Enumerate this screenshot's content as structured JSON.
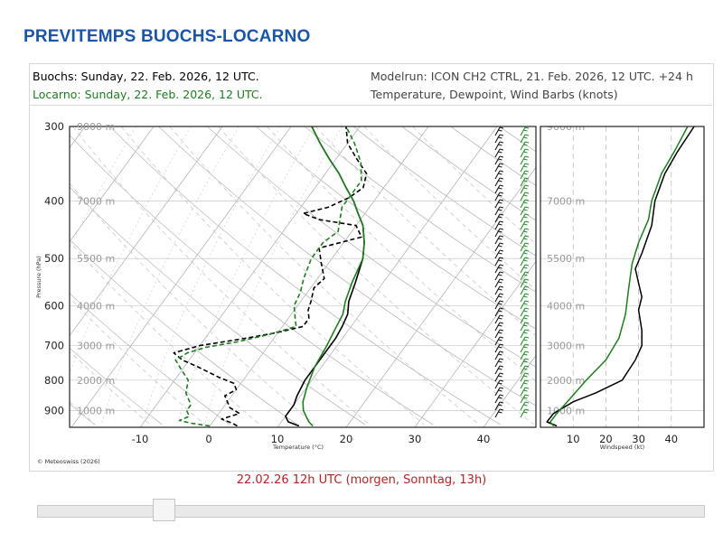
{
  "page": {
    "title": "PREVITEMPS BUOCHS-LOCARNO"
  },
  "header": {
    "station1": "Buochs: Sunday, 22. Feb. 2026, 12 UTC.",
    "station2": "Locarno: Sunday, 22. Feb. 2026, 12 UTC.",
    "modelrun": "Modelrun: ICON CH2 CTRL, 21. Feb. 2026, 12 UTC. +24 h",
    "variables": "Temperature, Dewpoint, Wind Barbs (knots)"
  },
  "copyright": "© Meteoswiss (2026)",
  "timestamp": "22.02.26 12h UTC (morgen, Sonntag, 13h)",
  "slider": {
    "position": 0.19
  },
  "colors": {
    "title": "#1a56a8",
    "buochs": "#000000",
    "locarno": "#1e7d1e",
    "timestamp": "#b32424"
  },
  "chart_data": [
    {
      "type": "line",
      "title": "",
      "xlabel": "Temperature (°C)",
      "ylabel": "Pressure (hPa)",
      "xlim": [
        -20,
        45
      ],
      "ylim": [
        960,
        300
      ],
      "log_scale_y": true,
      "x_ticks": [
        -10,
        0,
        10,
        20,
        30,
        40
      ],
      "y_ticks": [
        300,
        400,
        500,
        600,
        700,
        800,
        900
      ],
      "height_labels": [
        "9000 m",
        "7000 m",
        "5500 m",
        "4000 m",
        "3000 m",
        "2000 m",
        "1000 m"
      ],
      "series": [
        {
          "color": "#000000",
          "style": "solid",
          "points": [
            [
              13,
              955
            ],
            [
              11,
              940
            ],
            [
              10,
              920
            ],
            [
              10,
              880
            ],
            [
              9.5,
              850
            ],
            [
              9,
              800
            ],
            [
              9,
              750
            ],
            [
              9,
              700
            ],
            [
              9,
              680
            ],
            [
              8.7,
              650
            ],
            [
              8.2,
              620
            ],
            [
              7,
              590
            ],
            [
              6,
              550
            ],
            [
              4.5,
              500
            ],
            [
              3,
              470
            ],
            [
              1,
              440
            ],
            [
              -1,
              420
            ],
            [
              -3,
              400
            ],
            [
              -5.5,
              380
            ],
            [
              -8,
              360
            ],
            [
              -11,
              340
            ],
            [
              -14,
              320
            ],
            [
              -17,
              300
            ]
          ]
        },
        {
          "color": "#000000",
          "style": "dashed",
          "points": [
            [
              4,
              955
            ],
            [
              3,
              945
            ],
            [
              1,
              930
            ],
            [
              3,
              910
            ],
            [
              1,
              890
            ],
            [
              0,
              870
            ],
            [
              -1,
              850
            ],
            [
              0,
              830
            ],
            [
              -1,
              810
            ],
            [
              -4,
              790
            ],
            [
              -8,
              760
            ],
            [
              -11,
              740
            ],
            [
              -13,
              720
            ],
            [
              -10,
              700
            ],
            [
              -4,
              680
            ],
            [
              0,
              665
            ],
            [
              3,
              650
            ],
            [
              3,
              630
            ],
            [
              2,
              610
            ],
            [
              1.5,
              590
            ],
            [
              0.5,
              560
            ],
            [
              1,
              540
            ],
            [
              -1,
              510
            ],
            [
              -3,
              480
            ],
            [
              2,
              460
            ],
            [
              0,
              440
            ],
            [
              -6,
              430
            ],
            [
              -9,
              420
            ],
            [
              -6,
              410
            ],
            [
              -4,
              395
            ],
            [
              -3,
              380
            ],
            [
              -4,
              360
            ],
            [
              -7,
              340
            ],
            [
              -10,
              320
            ],
            [
              -12,
              300
            ]
          ]
        },
        {
          "color": "#1e7d1e",
          "style": "solid",
          "points": [
            [
              15,
              955
            ],
            [
              14,
              940
            ],
            [
              13,
              920
            ],
            [
              12,
              900
            ],
            [
              11,
              870
            ],
            [
              10,
              820
            ],
            [
              9,
              760
            ],
            [
              8.5,
              700
            ],
            [
              8,
              660
            ],
            [
              7.5,
              620
            ],
            [
              6.5,
              590
            ],
            [
              5.5,
              550
            ],
            [
              4.5,
              500
            ],
            [
              3,
              470
            ],
            [
              1,
              440
            ],
            [
              -1,
              420
            ],
            [
              -3,
              400
            ],
            [
              -5.5,
              380
            ],
            [
              -8,
              360
            ],
            [
              -11,
              340
            ],
            [
              -14,
              320
            ],
            [
              -17,
              300
            ]
          ]
        },
        {
          "color": "#1e7d1e",
          "style": "dashed",
          "points": [
            [
              0,
              955
            ],
            [
              -3,
              945
            ],
            [
              -5,
              935
            ],
            [
              -4,
              920
            ],
            [
              -5,
              900
            ],
            [
              -5,
              880
            ],
            [
              -6,
              860
            ],
            [
              -7,
              840
            ],
            [
              -8,
              800
            ],
            [
              -10,
              770
            ],
            [
              -12,
              740
            ],
            [
              -11,
              720
            ],
            [
              -9,
              705
            ],
            [
              -5,
              690
            ],
            [
              -1,
              670
            ],
            [
              2,
              650
            ],
            [
              1,
              630
            ],
            [
              -0.5,
              600
            ],
            [
              -1,
              570
            ],
            [
              -2,
              540
            ],
            [
              -3,
              500
            ],
            [
              -3,
              470
            ],
            [
              -2,
              450
            ],
            [
              -3,
              430
            ],
            [
              -4,
              410
            ],
            [
              -4,
              390
            ],
            [
              -4,
              370
            ],
            [
              -6,
              345
            ],
            [
              -9,
              320
            ],
            [
              -12,
              300
            ]
          ]
        }
      ]
    },
    {
      "type": "line",
      "title": "",
      "xlabel": "Windspeed (kt)",
      "ylabel": "",
      "xlim": [
        0,
        50
      ],
      "ylim": [
        960,
        300
      ],
      "log_scale_y": true,
      "x_ticks": [
        10,
        20,
        30,
        40
      ],
      "height_labels": [
        "9000 m",
        "7000 m",
        "5500 m",
        "4000 m",
        "3000 m",
        "2000 m",
        "1000 m"
      ],
      "series": [
        {
          "color": "#000000",
          "style": "solid",
          "points": [
            [
              5,
              955
            ],
            [
              2,
              940
            ],
            [
              4,
              910
            ],
            [
              10,
              870
            ],
            [
              17,
              840
            ],
            [
              25,
              800
            ],
            [
              29,
              740
            ],
            [
              31,
              700
            ],
            [
              31,
              660
            ],
            [
              30,
              610
            ],
            [
              31,
              580
            ],
            [
              30,
              550
            ],
            [
              29,
              520
            ],
            [
              31,
              490
            ],
            [
              34,
              440
            ],
            [
              35,
              400
            ],
            [
              38,
              360
            ],
            [
              42,
              330
            ],
            [
              47,
              300
            ]
          ]
        },
        {
          "color": "#1e7d1e",
          "style": "solid",
          "points": [
            [
              4,
              955
            ],
            [
              3,
              940
            ],
            [
              5,
              910
            ],
            [
              9,
              860
            ],
            [
              14,
              800
            ],
            [
              20,
              740
            ],
            [
              24,
              680
            ],
            [
              26,
              620
            ],
            [
              27,
              560
            ],
            [
              28,
              510
            ],
            [
              30,
              470
            ],
            [
              33,
              430
            ],
            [
              34,
              400
            ],
            [
              37,
              360
            ],
            [
              41,
              330
            ],
            [
              45,
              300
            ]
          ]
        }
      ]
    }
  ]
}
